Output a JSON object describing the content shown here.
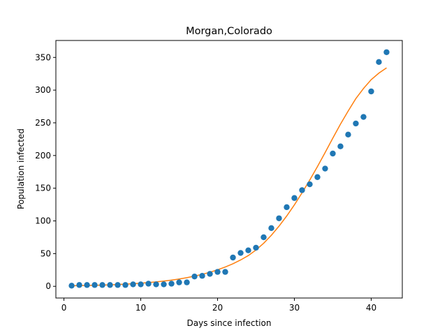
{
  "chart_data": {
    "type": "scatter",
    "title": "Morgan,Colorado",
    "xlabel": "Days since infection",
    "ylabel": "Population infected",
    "xlim": [
      -1.05,
      44.05
    ],
    "ylim": [
      -17.9,
      375.9
    ],
    "xticks": [
      0,
      10,
      20,
      30,
      40
    ],
    "yticks": [
      0,
      50,
      100,
      150,
      200,
      250,
      300,
      350
    ],
    "grid": false,
    "colors": {
      "points": "#1f77b4",
      "fit": "#ff7f0e"
    },
    "series": [
      {
        "kind": "scatter",
        "x": [
          1,
          2,
          3,
          4,
          5,
          6,
          7,
          8,
          9,
          10,
          11,
          12,
          13,
          14,
          15,
          16,
          17,
          18,
          19,
          20,
          21,
          22,
          23,
          24,
          25,
          26,
          27,
          28,
          29,
          30,
          31,
          32,
          33,
          34,
          35,
          36,
          37,
          38,
          39,
          40,
          41,
          42
        ],
        "y": [
          1,
          2,
          2,
          2,
          2,
          2,
          2,
          2,
          3,
          3,
          4,
          3,
          3,
          4,
          6,
          6,
          15,
          16,
          19,
          22,
          22,
          44,
          51,
          55,
          59,
          75,
          89,
          104,
          121,
          135,
          147,
          156,
          167,
          180,
          203,
          214,
          232,
          249,
          259,
          298,
          343,
          358
        ]
      },
      {
        "kind": "line",
        "x": [
          1,
          2,
          3,
          4,
          5,
          6,
          7,
          8,
          9,
          10,
          11,
          12,
          13,
          14,
          15,
          16,
          17,
          18,
          19,
          20,
          21,
          22,
          23,
          24,
          25,
          26,
          27,
          28,
          29,
          30,
          31,
          32,
          33,
          34,
          35,
          36,
          37,
          38,
          39,
          40,
          41,
          42
        ],
        "y": [
          0.9,
          1.1,
          1.3,
          1.6,
          1.9,
          2.3,
          2.8,
          3.3,
          4,
          4.8,
          5.7,
          6.8,
          8,
          9.5,
          11.2,
          13.2,
          15.6,
          18.3,
          21.5,
          25.2,
          29.5,
          34.5,
          40.3,
          47,
          55.5,
          65.8,
          78,
          92,
          107.5,
          124.5,
          143,
          162.5,
          183,
          204.5,
          226.5,
          248,
          268,
          287,
          302.5,
          316,
          326,
          334
        ]
      }
    ]
  }
}
